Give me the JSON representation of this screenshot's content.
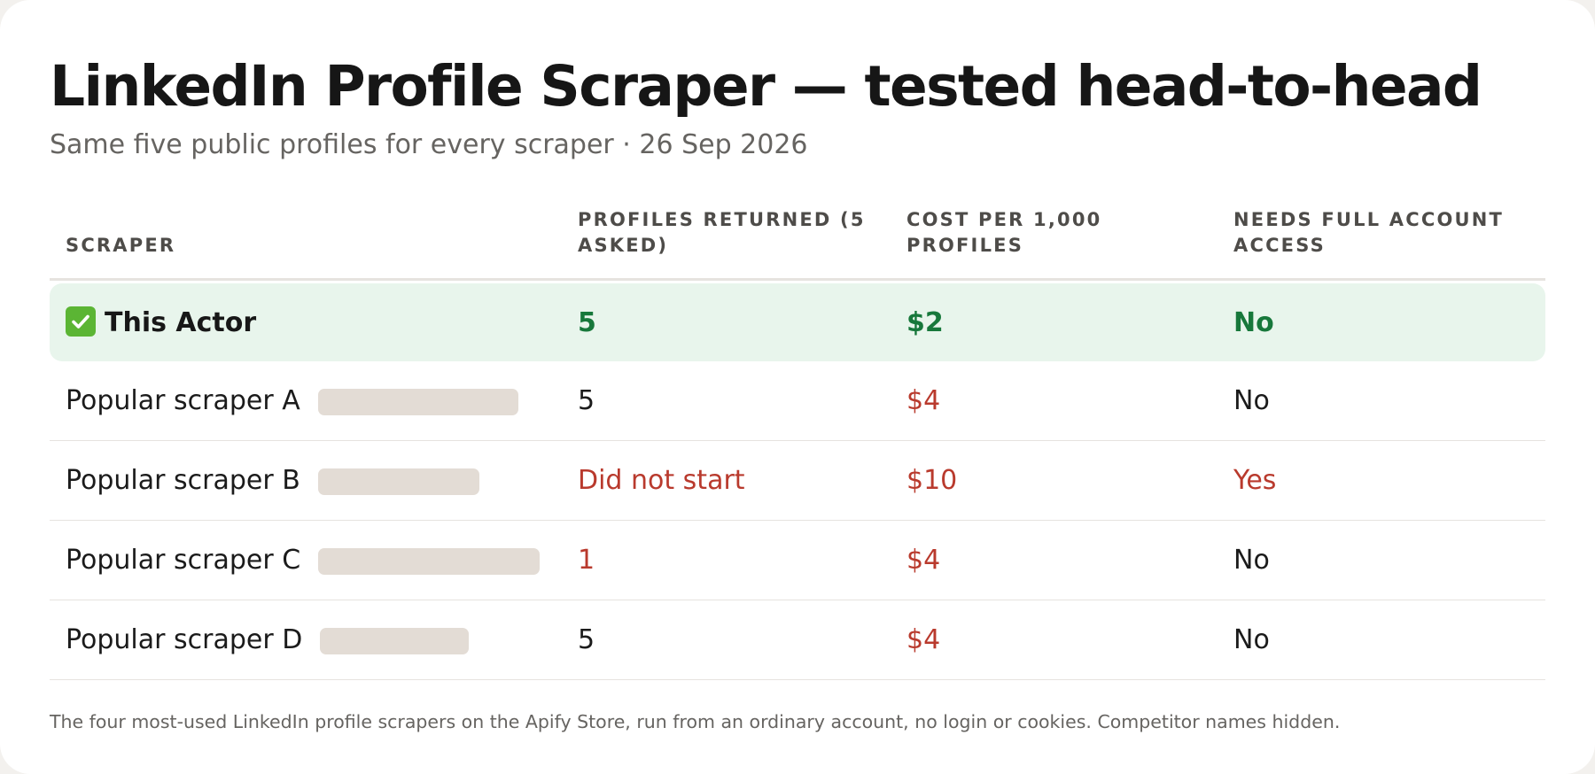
{
  "header": {
    "title": "LinkedIn Profile Scraper — tested head-to-head",
    "subtitle": "Same five public profiles for every scraper · 26 Sep 2026"
  },
  "table": {
    "columns": [
      "SCRAPER",
      "PROFILES RETURNED (5 ASKED)",
      "COST PER 1,000 PROFILES",
      "NEEDS FULL ACCOUNT ACCESS"
    ],
    "winner": {
      "icon": "check-mark-icon",
      "name": "This Actor",
      "profiles": "5",
      "cost": "$2",
      "access": "No"
    },
    "rows": [
      {
        "name": "Popular scraper A",
        "profiles": "5",
        "cost": "$4",
        "access": "No"
      },
      {
        "name": "Popular scraper B",
        "profiles": "Did not start",
        "cost": "$10",
        "access": "Yes"
      },
      {
        "name": "Popular scraper C",
        "profiles": "1",
        "cost": "$4",
        "access": "No"
      },
      {
        "name": "Popular scraper D",
        "profiles": "5",
        "cost": "$4",
        "access": "No"
      }
    ]
  },
  "footnote": "The four most-used LinkedIn profile scrapers on the Apify Store, run from an ordinary account, no login or cookies. Competitor names hidden.",
  "colors": {
    "highlight_row": "#e8f5ec",
    "good": "#17783b",
    "bad": "#b93a2d",
    "redaction": "#e3dcd5"
  }
}
